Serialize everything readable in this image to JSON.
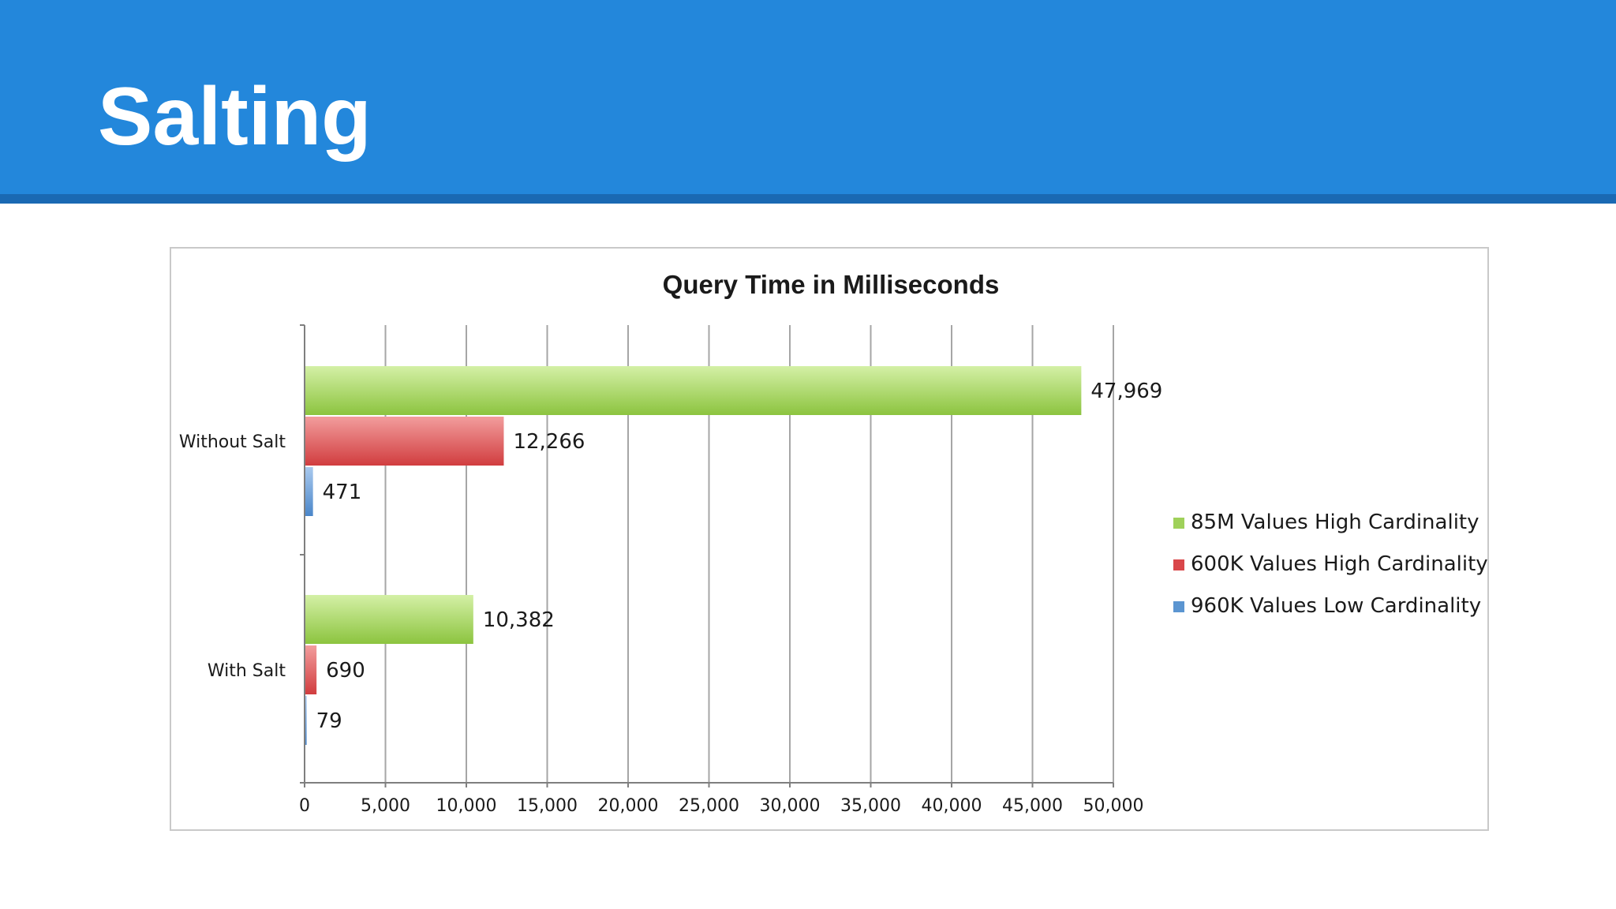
{
  "slide": {
    "title": "Salting"
  },
  "theme": {
    "header_color": "#2387db",
    "header_rule_color": "#1a69b3"
  },
  "chart_data": {
    "type": "bar",
    "orientation": "horizontal",
    "title": "Query Time in Milliseconds",
    "xlabel": "",
    "ylabel": "",
    "xlim": [
      0,
      50000
    ],
    "x_ticks": [
      0,
      5000,
      10000,
      15000,
      20000,
      25000,
      30000,
      35000,
      40000,
      45000,
      50000
    ],
    "x_tick_labels": [
      "0",
      "5,000",
      "10,000",
      "15,000",
      "20,000",
      "25,000",
      "30,000",
      "35,000",
      "40,000",
      "45,000",
      "50,000"
    ],
    "grid": true,
    "legend_position": "right",
    "categories": [
      "Without Salt",
      "With Salt"
    ],
    "series": [
      {
        "name": "85M Values High Cardinality",
        "color": "#9fd15a",
        "values": [
          47969,
          10382
        ],
        "value_labels": [
          "47,969",
          "10,382"
        ]
      },
      {
        "name": "600K Values High Cardinality",
        "color": "#d9474a",
        "values": [
          12266,
          690
        ],
        "value_labels": [
          "12,266",
          "690"
        ]
      },
      {
        "name": "960K Values Low Cardinality",
        "color": "#5b95d1",
        "values": [
          471,
          79
        ],
        "value_labels": [
          "471",
          "79"
        ]
      }
    ]
  }
}
